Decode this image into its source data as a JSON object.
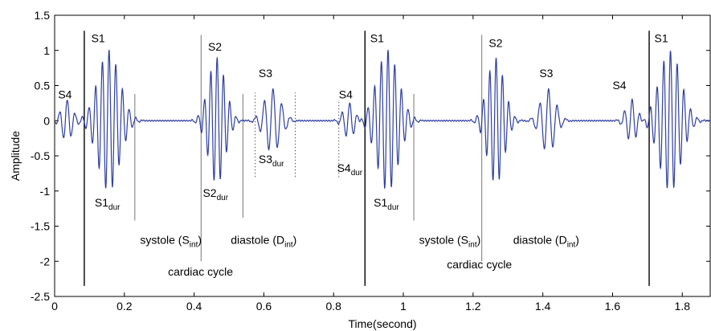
{
  "chart_data": {
    "type": "line",
    "xlabel": "Time(second)",
    "ylabel": "Amplitude",
    "xlim": [
      0,
      1.88
    ],
    "ylim": [
      -2.5,
      1.5
    ],
    "xticks": [
      "0",
      "0.2",
      "0.4",
      "0.6",
      "0.8",
      "1",
      "1.2",
      "1.4",
      "1.6",
      "1.8"
    ],
    "yticks": [
      "1.5",
      "1",
      "0.5",
      "0",
      "-0.5",
      "-1",
      "-1.5",
      "-2",
      "-2.5"
    ],
    "grid": false,
    "line_color": "#2f3fa0",
    "series": [
      {
        "bursts": [
          {
            "sound": "S4",
            "center": 0.035,
            "dur": 0.065,
            "amp": 0.3,
            "freq": 45
          },
          {
            "sound": "S1",
            "center": 0.155,
            "dur": 0.13,
            "amp": 1.0,
            "freq": 52
          },
          {
            "sound": "S2",
            "center": 0.465,
            "dur": 0.1,
            "amp": 0.9,
            "freq": 55
          },
          {
            "sound": "S3",
            "center": 0.625,
            "dur": 0.1,
            "amp": 0.45,
            "freq": 40
          },
          {
            "sound": "S4",
            "center": 0.845,
            "dur": 0.07,
            "amp": 0.25,
            "freq": 45
          },
          {
            "sound": "S1",
            "center": 0.955,
            "dur": 0.13,
            "amp": 1.0,
            "freq": 52
          },
          {
            "sound": "S2",
            "center": 1.265,
            "dur": 0.1,
            "amp": 0.9,
            "freq": 55
          },
          {
            "sound": "S3",
            "center": 1.415,
            "dur": 0.09,
            "amp": 0.45,
            "freq": 40
          },
          {
            "sound": "S4",
            "center": 1.655,
            "dur": 0.07,
            "amp": 0.3,
            "freq": 45
          },
          {
            "sound": "S1",
            "center": 1.765,
            "dur": 0.13,
            "amp": 1.0,
            "freq": 52
          }
        ]
      }
    ],
    "vlines": [
      {
        "x": 0.085,
        "y0": -2.35,
        "y1": 1.28,
        "color": "#000000"
      },
      {
        "x": 0.23,
        "y0": -1.42,
        "y1": 0.38,
        "color": "#777777"
      },
      {
        "x": 0.42,
        "y0": -2.0,
        "y1": 1.22,
        "color": "#777777"
      },
      {
        "x": 0.54,
        "y0": -1.38,
        "y1": 0.38,
        "color": "#777777"
      },
      {
        "x": 0.89,
        "y0": -2.35,
        "y1": 1.28,
        "color": "#000000"
      },
      {
        "x": 1.03,
        "y0": -1.42,
        "y1": 0.38,
        "color": "#777777"
      },
      {
        "x": 1.225,
        "y0": -2.0,
        "y1": 1.22,
        "color": "#777777"
      },
      {
        "x": 1.705,
        "y0": -2.35,
        "y1": 1.28,
        "color": "#000000"
      }
    ],
    "dotted_lines": [
      {
        "x": 0.575,
        "y0": -0.8,
        "y1": 0.4
      },
      {
        "x": 0.69,
        "y0": -0.8,
        "y1": 0.4
      },
      {
        "x": 0.815,
        "y0": -0.8,
        "y1": 0.3
      }
    ],
    "annotations": [
      {
        "text": "S4",
        "x": 0.01,
        "y": 0.32
      },
      {
        "text": "S1",
        "x": 0.105,
        "y": 1.12
      },
      {
        "text": "S1",
        "sub": "dur",
        "x": 0.115,
        "y": -1.22
      },
      {
        "text": "systole (S",
        "sub": "int",
        "tail": ")",
        "x": 0.245,
        "y": -1.75
      },
      {
        "text": "S2",
        "x": 0.44,
        "y": 1.0
      },
      {
        "text": "S2",
        "sub": "dur",
        "x": 0.425,
        "y": -1.08
      },
      {
        "text": "diastole (D",
        "sub": "int",
        "tail": ")",
        "x": 0.505,
        "y": -1.75
      },
      {
        "text": "cardiac cycle",
        "x": 0.325,
        "y": -2.2
      },
      {
        "text": "S3",
        "x": 0.585,
        "y": 0.62
      },
      {
        "text": "S3",
        "sub": "dur",
        "x": 0.585,
        "y": -0.6
      },
      {
        "text": "S4",
        "x": 0.815,
        "y": 0.32
      },
      {
        "text": "S4",
        "sub": "dur",
        "x": 0.81,
        "y": -0.73
      },
      {
        "text": "S1",
        "x": 0.905,
        "y": 1.12
      },
      {
        "text": "S1",
        "sub": "dur",
        "x": 0.915,
        "y": -1.22
      },
      {
        "text": "systole (S",
        "sub": "int",
        "tail": ")",
        "x": 1.045,
        "y": -1.75
      },
      {
        "text": "cardiac cycle",
        "x": 1.125,
        "y": -2.1
      },
      {
        "text": "S2",
        "x": 1.245,
        "y": 1.05
      },
      {
        "text": "diastole (D",
        "sub": "int",
        "tail": ")",
        "x": 1.315,
        "y": -1.75
      },
      {
        "text": "S3",
        "x": 1.39,
        "y": 0.62
      },
      {
        "text": "S4",
        "x": 1.6,
        "y": 0.45
      },
      {
        "text": "S1",
        "x": 1.72,
        "y": 1.12
      }
    ]
  }
}
